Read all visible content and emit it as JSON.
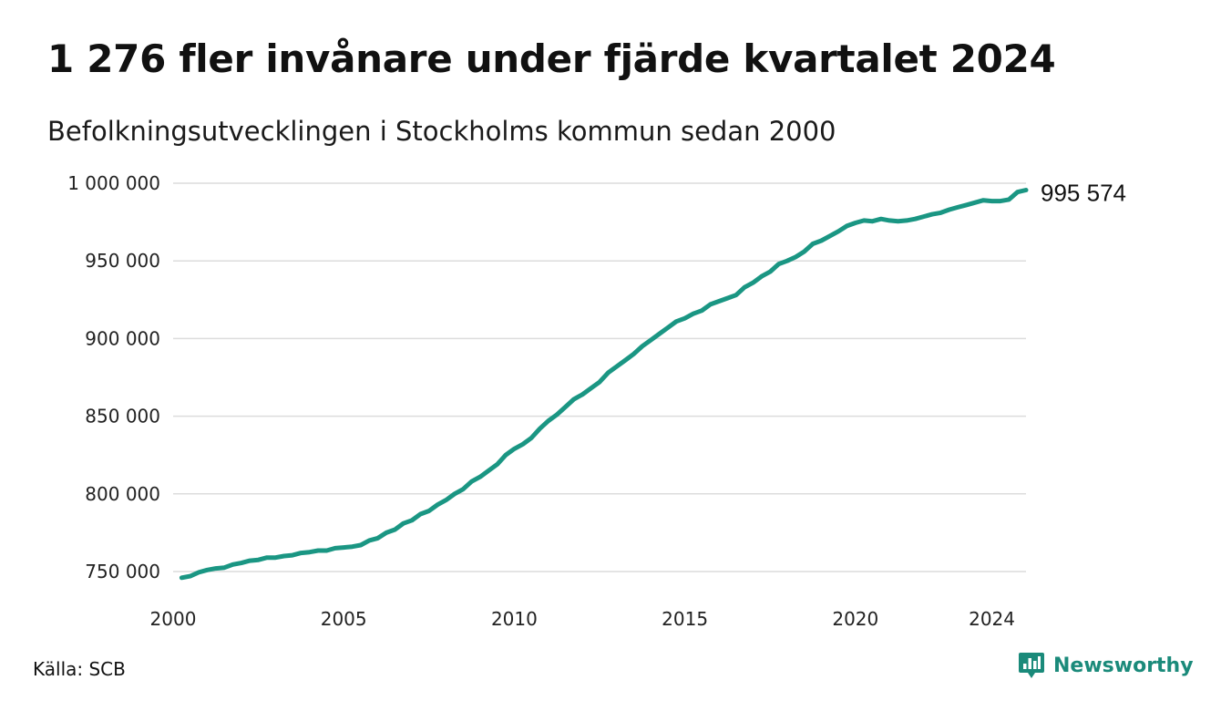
{
  "title": "1 276 fler invånare under fjärde kvartalet 2024",
  "subtitle": "Befolkningsutvecklingen i Stockholms kommun sedan 2000",
  "source": "Källa: SCB",
  "brand": {
    "name": "Newsworthy",
    "icon": "newsworthy-logo-icon",
    "color": "#1a8a7a"
  },
  "colors": {
    "line": "#1a9683",
    "grid": "#dcdcdc"
  },
  "chart_data": {
    "type": "line",
    "title": "1 276 fler invånare under fjärde kvartalet 2024",
    "subtitle": "Befolkningsutvecklingen i Stockholms kommun sedan 2000",
    "xlabel": "",
    "ylabel": "",
    "xlim": [
      2000,
      2025
    ],
    "ylim": [
      745000,
      1000000
    ],
    "grid": true,
    "x_ticks": [
      2000,
      2005,
      2010,
      2015,
      2020,
      2024
    ],
    "x_tick_labels": [
      "2000",
      "2005",
      "2010",
      "2015",
      "2020",
      "2024"
    ],
    "y_ticks": [
      750000,
      800000,
      850000,
      900000,
      950000,
      1000000
    ],
    "y_tick_labels": [
      "750 000",
      "800 000",
      "850 000",
      "900 000",
      "950 000",
      "1 000 000"
    ],
    "end_label": "995 574",
    "series": [
      {
        "x": [
          2000.25,
          2000.5,
          2000.75,
          2001,
          2001.25,
          2001.5,
          2001.75,
          2002,
          2002.25,
          2002.5,
          2002.75,
          2003,
          2003.25,
          2003.5,
          2003.75,
          2004,
          2004.25,
          2004.5,
          2004.75,
          2005,
          2005.25,
          2005.5,
          2005.75,
          2006,
          2006.25,
          2006.5,
          2006.75,
          2007,
          2007.25,
          2007.5,
          2007.75,
          2008,
          2008.25,
          2008.5,
          2008.75,
          2009,
          2009.25,
          2009.5,
          2009.75,
          2010,
          2010.25,
          2010.5,
          2010.75,
          2011,
          2011.25,
          2011.5,
          2011.75,
          2012,
          2012.25,
          2012.5,
          2012.75,
          2013,
          2013.25,
          2013.5,
          2013.75,
          2014,
          2014.25,
          2014.5,
          2014.75,
          2015,
          2015.25,
          2015.5,
          2015.75,
          2016,
          2016.25,
          2016.5,
          2016.75,
          2017,
          2017.25,
          2017.5,
          2017.75,
          2018,
          2018.25,
          2018.5,
          2018.75,
          2019,
          2019.25,
          2019.5,
          2019.75,
          2020,
          2020.25,
          2020.5,
          2020.75,
          2021,
          2021.25,
          2021.5,
          2021.75,
          2022,
          2022.25,
          2022.5,
          2022.75,
          2023,
          2023.25,
          2023.5,
          2023.75,
          2024,
          2024.25,
          2024.5,
          2024.75,
          2025
        ],
        "values": [
          746000,
          747000,
          749500,
          751000,
          752000,
          752500,
          754500,
          755500,
          757000,
          757500,
          759000,
          759000,
          760000,
          760500,
          762000,
          762500,
          763500,
          763500,
          765000,
          765500,
          766000,
          767000,
          770000,
          771500,
          775000,
          777000,
          781000,
          783000,
          787000,
          789000,
          793000,
          796000,
          800000,
          803000,
          808000,
          811000,
          815000,
          819000,
          825000,
          829000,
          832000,
          836000,
          842000,
          847000,
          851000,
          856000,
          861000,
          864000,
          868000,
          872000,
          878000,
          882000,
          886000,
          890000,
          895000,
          899000,
          903000,
          907000,
          911000,
          913000,
          916000,
          918000,
          922000,
          924000,
          926000,
          928000,
          933000,
          936000,
          940000,
          943000,
          948000,
          950000,
          952500,
          956000,
          961000,
          963000,
          966000,
          969000,
          972500,
          974500,
          976000,
          975500,
          977000,
          976000,
          975500,
          976000,
          977000,
          978500,
          980000,
          981000,
          983000,
          984500,
          986000,
          987500,
          989000,
          988500,
          988500,
          989500,
          994300,
          995574
        ]
      }
    ]
  }
}
